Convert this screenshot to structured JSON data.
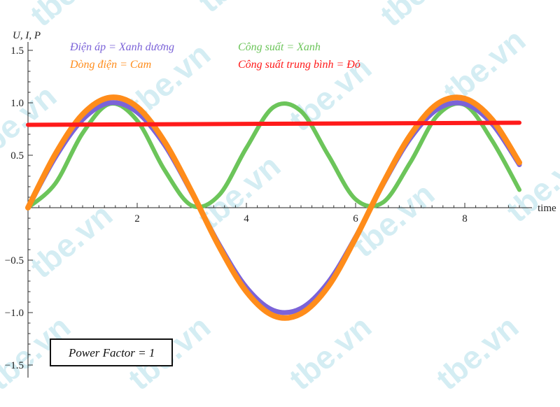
{
  "chart_data": {
    "type": "line",
    "ylabel": "U, I, P",
    "xlabel": "time",
    "xlim": [
      0,
      9
    ],
    "ylim": [
      -1.5,
      1.5
    ],
    "x_ticks": [
      2,
      4,
      6,
      8
    ],
    "y_ticks": [
      1.5,
      1.0,
      0.5,
      -0.5,
      -1.0,
      -1.5
    ],
    "y_tick_labels": [
      "1.5",
      "1.0",
      "0.5",
      "−0.5",
      "−1.0",
      "−1.5"
    ],
    "grid": false,
    "legend": [
      {
        "label": "Điện áp = Xanh dương",
        "color": "#7b63d8"
      },
      {
        "label": "Dòng điện = Cam",
        "color": "#ff8c1a"
      },
      {
        "label": "Công suất = Xanh",
        "color": "#6cc55a"
      },
      {
        "label": "Công suất trung bình = Đỏ",
        "color": "#ff1a1a"
      }
    ],
    "annotation": "Power Factor = 1",
    "series": [
      {
        "name": "Điện áp = Xanh dương",
        "color": "#7b63d8",
        "x": [
          0,
          0.5,
          1.0,
          1.5,
          2.0,
          2.5,
          3.0,
          3.5,
          4.0,
          4.5,
          5.0,
          5.5,
          6.0,
          6.5,
          7.0,
          7.5,
          8.0,
          8.5,
          9.0
        ],
        "values": [
          0.0,
          0.48,
          0.84,
          1.0,
          0.91,
          0.6,
          0.14,
          -0.35,
          -0.76,
          -0.98,
          -0.96,
          -0.71,
          -0.28,
          0.22,
          0.66,
          0.94,
          0.99,
          0.8,
          0.41
        ]
      },
      {
        "name": "Dòng điện = Cam",
        "color": "#ff8c1a",
        "x": [
          0,
          0.5,
          1.0,
          1.5,
          2.0,
          2.5,
          3.0,
          3.5,
          4.0,
          4.5,
          5.0,
          5.5,
          6.0,
          6.5,
          7.0,
          7.5,
          8.0,
          8.5,
          9.0
        ],
        "values": [
          0.0,
          0.51,
          0.89,
          1.05,
          0.96,
          0.63,
          0.15,
          -0.37,
          -0.8,
          -1.03,
          -1.01,
          -0.75,
          -0.29,
          0.23,
          0.69,
          0.99,
          1.04,
          0.84,
          0.43
        ]
      },
      {
        "name": "Công suất = Xanh",
        "color": "#6cc55a",
        "x": [
          0,
          0.5,
          1.0,
          1.5,
          2.0,
          2.5,
          3.0,
          3.5,
          4.0,
          4.5,
          5.0,
          5.5,
          6.0,
          6.5,
          7.0,
          7.5,
          8.0,
          8.5,
          9.0
        ],
        "values": [
          0.0,
          0.23,
          0.71,
          0.99,
          0.83,
          0.36,
          0.02,
          0.12,
          0.57,
          0.96,
          0.92,
          0.5,
          0.08,
          0.05,
          0.43,
          0.88,
          0.98,
          0.64,
          0.17
        ]
      },
      {
        "name": "Công suất trung bình = Đỏ",
        "color": "#ff1a1a",
        "x": [
          0,
          9
        ],
        "values": [
          0.79,
          0.81
        ]
      }
    ]
  },
  "watermark_text": "tbe.vn"
}
